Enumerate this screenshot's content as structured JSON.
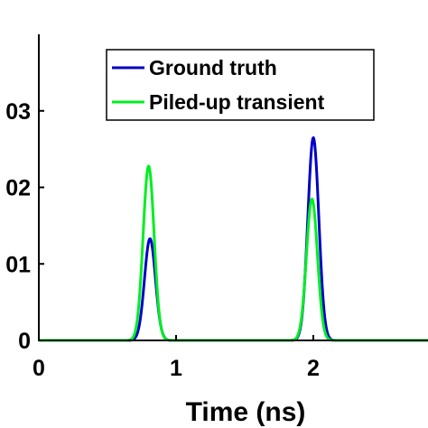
{
  "chart_data": {
    "type": "line",
    "title": "",
    "xlabel": "Time (ns)",
    "ylabel": "",
    "xlim": [
      0,
      2.9
    ],
    "ylim": [
      0,
      0.04
    ],
    "x_ticks": [
      0,
      1,
      2
    ],
    "x_tick_labels": [
      "0",
      "1",
      "2"
    ],
    "y_ticks": [
      0,
      0.01,
      0.02,
      0.03
    ],
    "y_tick_labels": [
      "0",
      "01",
      "02",
      "03"
    ],
    "grid": false,
    "legend_position": "top-right",
    "series": [
      {
        "name": "Ground truth",
        "color": "#0000c8",
        "pulses": [
          {
            "center": 0.81,
            "peak": 0.0133,
            "sigma": 0.04
          },
          {
            "center": 2.0,
            "peak": 0.0265,
            "sigma": 0.04
          }
        ]
      },
      {
        "name": "Piled-up transient",
        "color": "#00ee22",
        "pulses": [
          {
            "center": 0.8,
            "peak": 0.0228,
            "sigma": 0.04
          },
          {
            "center": 1.99,
            "peak": 0.0185,
            "sigma": 0.04
          }
        ]
      }
    ]
  }
}
